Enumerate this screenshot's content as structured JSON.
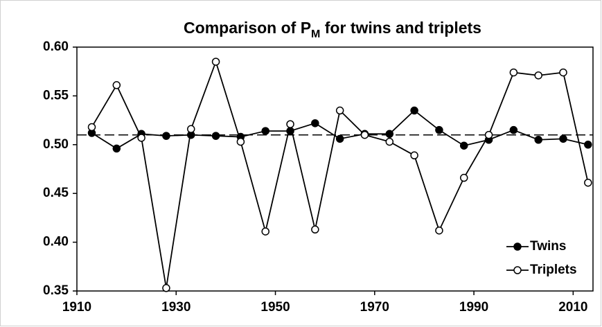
{
  "chart_data": {
    "type": "line",
    "title_parts": [
      "Comparison of P",
      "M",
      " for twins and triplets"
    ],
    "x": [
      1913,
      1918,
      1923,
      1928,
      1933,
      1938,
      1943,
      1948,
      1953,
      1958,
      1963,
      1968,
      1973,
      1978,
      1983,
      1988,
      1993,
      1998,
      2003,
      2008,
      2013
    ],
    "series": [
      {
        "name": "Twins",
        "color": "#000000",
        "marker_fill": "#000000",
        "values": [
          0.512,
          0.496,
          0.511,
          0.509,
          0.51,
          0.509,
          0.508,
          0.514,
          0.514,
          0.522,
          0.506,
          0.511,
          0.511,
          0.535,
          0.515,
          0.499,
          0.505,
          0.515,
          0.505,
          0.506,
          0.5
        ]
      },
      {
        "name": "Triplets",
        "color": "#000000",
        "marker_fill": "#ffffff",
        "values": [
          0.518,
          0.561,
          0.507,
          0.353,
          0.516,
          0.585,
          0.503,
          0.411,
          0.521,
          0.413,
          0.535,
          0.51,
          0.503,
          0.489,
          0.412,
          0.466,
          0.51,
          0.574,
          0.571,
          0.574,
          0.461
        ]
      }
    ],
    "reference_line": 0.51,
    "xlim": [
      1910,
      2014
    ],
    "xticks": [
      1910,
      1930,
      1950,
      1970,
      1990,
      2010
    ],
    "ylim": [
      0.35,
      0.6
    ],
    "yticks": [
      {
        "value": 0.35,
        "label": "0.35"
      },
      {
        "value": 0.4,
        "label": "0.40"
      },
      {
        "value": 0.45,
        "label": "0.45"
      },
      {
        "value": 0.5,
        "label": "0.50"
      },
      {
        "value": 0.55,
        "label": "0.55"
      },
      {
        "value": 0.6,
        "label": "0.60"
      }
    ],
    "legend": "bottom-right"
  }
}
